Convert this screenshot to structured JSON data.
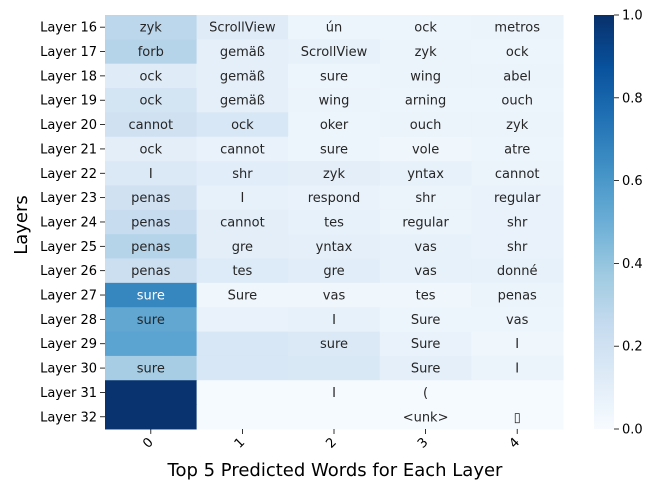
{
  "chart_data": {
    "type": "heatmap",
    "title": "",
    "xlabel": "Top 5 Predicted Words for Each Layer",
    "ylabel": "Layers",
    "x_tick_labels": [
      "0",
      "1",
      "2",
      "3",
      "4"
    ],
    "y_tick_labels": [
      "Layer 16",
      "Layer 17",
      "Layer 18",
      "Layer 19",
      "Layer 20",
      "Layer 21",
      "Layer 22",
      "Layer 23",
      "Layer 24",
      "Layer 25",
      "Layer 26",
      "Layer 27",
      "Layer 28",
      "Layer 29",
      "Layer 30",
      "Layer 31",
      "Layer 32"
    ],
    "colorscale": "Blues",
    "vmin": 0.0,
    "vmax": 1.0,
    "colorbar_ticks": [
      "0.0",
      "0.2",
      "0.4",
      "0.6",
      "0.8",
      "1.0"
    ],
    "colorbar_tick_values": [
      0.0,
      0.2,
      0.4,
      0.6,
      0.8,
      1.0
    ],
    "values": [
      [
        0.28,
        0.12,
        0.05,
        0.05,
        0.06
      ],
      [
        0.3,
        0.09,
        0.08,
        0.06,
        0.05
      ],
      [
        0.12,
        0.09,
        0.05,
        0.06,
        0.06
      ],
      [
        0.18,
        0.09,
        0.06,
        0.05,
        0.05
      ],
      [
        0.2,
        0.16,
        0.05,
        0.06,
        0.06
      ],
      [
        0.1,
        0.07,
        0.05,
        0.04,
        0.05
      ],
      [
        0.14,
        0.11,
        0.1,
        0.08,
        0.06
      ],
      [
        0.2,
        0.08,
        0.07,
        0.06,
        0.07
      ],
      [
        0.24,
        0.1,
        0.08,
        0.06,
        0.07
      ],
      [
        0.3,
        0.1,
        0.09,
        0.08,
        0.07
      ],
      [
        0.22,
        0.13,
        0.11,
        0.08,
        0.08
      ],
      [
        0.67,
        0.04,
        0.04,
        0.04,
        0.06
      ],
      [
        0.53,
        0.07,
        0.08,
        0.05,
        0.05
      ],
      [
        0.55,
        0.16,
        0.14,
        0.07,
        0.04
      ],
      [
        0.35,
        0.16,
        0.15,
        0.09,
        0.06
      ],
      [
        0.99,
        0.01,
        0.01,
        0.01,
        0.01
      ],
      [
        0.99,
        0.01,
        0.01,
        0.01,
        0.01
      ]
    ],
    "annotations": [
      [
        "zyk",
        "ScrollView",
        "ún",
        "ock",
        "metros"
      ],
      [
        "forb",
        "gemäß",
        "ScrollView",
        "zyk",
        "ock"
      ],
      [
        "ock",
        "gemäß",
        "sure",
        "wing",
        "abel"
      ],
      [
        "ock",
        "gemäß",
        "wing",
        "arning",
        "ouch"
      ],
      [
        "cannot",
        "ock",
        "oker",
        "ouch",
        "zyk"
      ],
      [
        "ock",
        "cannot",
        "sure",
        "vole",
        "atre"
      ],
      [
        "I",
        "shr",
        "zyk",
        "yntax",
        "cannot"
      ],
      [
        "penas",
        "I",
        "respond",
        "shr",
        "regular"
      ],
      [
        "penas",
        "cannot",
        "tes",
        "regular",
        "shr"
      ],
      [
        "penas",
        "gre",
        "yntax",
        "vas",
        "shr"
      ],
      [
        "penas",
        "tes",
        "gre",
        "vas",
        "donné"
      ],
      [
        "sure",
        "Sure",
        "vas",
        "tes",
        "penas"
      ],
      [
        "sure",
        "",
        "I",
        "Sure",
        "vas"
      ],
      [
        "",
        "",
        "sure",
        "Sure",
        "I"
      ],
      [
        "sure",
        "",
        "",
        "Sure",
        "I"
      ],
      [
        "",
        "",
        "I",
        "(",
        ""
      ],
      [
        "",
        "",
        "",
        "<unk>",
        "▯"
      ]
    ]
  }
}
